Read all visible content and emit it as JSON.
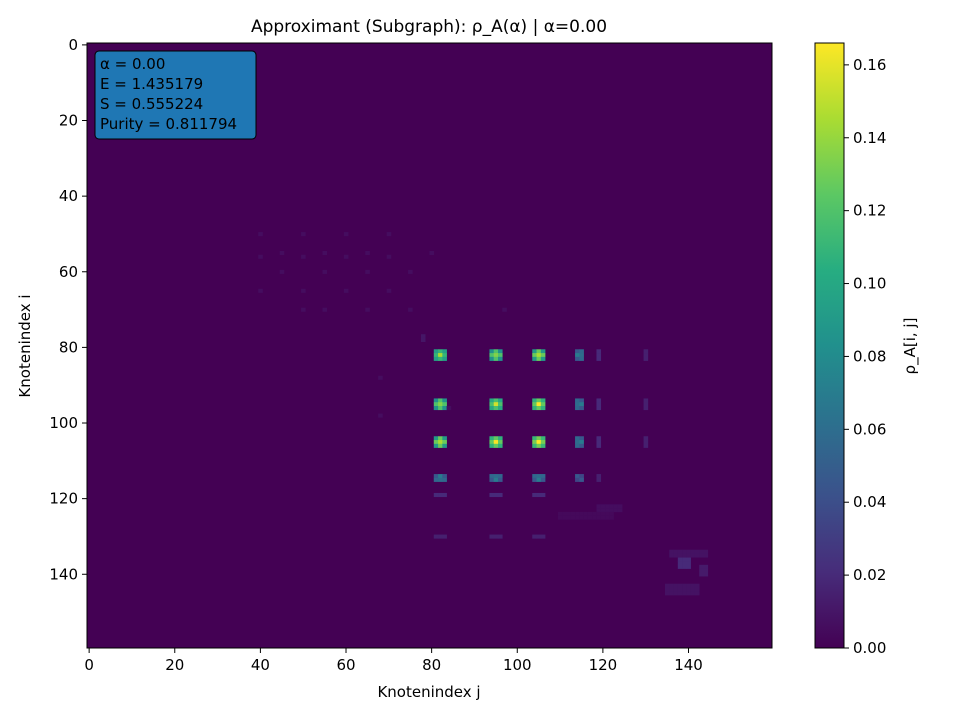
{
  "chart_data": {
    "type": "heatmap",
    "title": "Approximant (Subgraph): ρ_A(α)  |  α=0.00",
    "xlabel": "Knotenindex j",
    "ylabel": "Knotenindex i",
    "colorbar_label": "ρ_A[i, j]",
    "colormap": "viridis",
    "x_range": [
      0,
      159
    ],
    "y_range": [
      0,
      159
    ],
    "y_inverted": true,
    "x_ticks": [
      0,
      20,
      40,
      60,
      80,
      100,
      120,
      140
    ],
    "y_ticks": [
      0,
      20,
      40,
      60,
      80,
      100,
      120,
      140
    ],
    "color_range": [
      0,
      0.166
    ],
    "colorbar_ticks": [
      0.0,
      0.02,
      0.04,
      0.06,
      0.08,
      0.1,
      0.12,
      0.14,
      0.16
    ],
    "colorbar_tick_labels": [
      "0.00",
      "0.02",
      "0.04",
      "0.06",
      "0.08",
      "0.10",
      "0.12",
      "0.14",
      "0.16"
    ],
    "background_value": 0.0,
    "info_box": {
      "lines": [
        "α = 0.00",
        "E = 1.435179",
        "S = 0.555224",
        "Purity = 0.811794"
      ],
      "background_color": "#1f77b4"
    },
    "hotspot_indices": [
      81,
      82,
      83,
      94,
      95,
      96,
      104,
      105,
      106
    ],
    "hotspot_blocks": [
      {
        "i": [
          81,
          83
        ],
        "j": [
          81,
          83
        ],
        "value": 0.14
      },
      {
        "i": [
          81,
          83
        ],
        "j": [
          94,
          96
        ],
        "value": 0.14
      },
      {
        "i": [
          81,
          83
        ],
        "j": [
          104,
          106
        ],
        "value": 0.15
      },
      {
        "i": [
          94,
          96
        ],
        "j": [
          81,
          83
        ],
        "value": 0.14
      },
      {
        "i": [
          94,
          96
        ],
        "j": [
          94,
          96
        ],
        "value": 0.15
      },
      {
        "i": [
          94,
          96
        ],
        "j": [
          104,
          106
        ],
        "value": 0.16
      },
      {
        "i": [
          104,
          106
        ],
        "j": [
          81,
          83
        ],
        "value": 0.15
      },
      {
        "i": [
          104,
          106
        ],
        "j": [
          94,
          96
        ],
        "value": 0.16
      },
      {
        "i": [
          104,
          106
        ],
        "j": [
          104,
          106
        ],
        "value": 0.166
      }
    ],
    "medium_blocks": [
      {
        "i": [
          81,
          83
        ],
        "j": [
          114,
          115
        ],
        "value": 0.07
      },
      {
        "i": [
          94,
          96
        ],
        "j": [
          114,
          115
        ],
        "value": 0.07
      },
      {
        "i": [
          104,
          106
        ],
        "j": [
          114,
          115
        ],
        "value": 0.07
      },
      {
        "i": [
          114,
          115
        ],
        "j": [
          81,
          83
        ],
        "value": 0.07
      },
      {
        "i": [
          114,
          115
        ],
        "j": [
          94,
          96
        ],
        "value": 0.07
      },
      {
        "i": [
          114,
          115
        ],
        "j": [
          104,
          106
        ],
        "value": 0.07
      },
      {
        "i": [
          114,
          115
        ],
        "j": [
          114,
          115
        ],
        "value": 0.05
      }
    ],
    "faint_blocks": [
      {
        "i": [
          81,
          83
        ],
        "j": [
          119,
          119
        ],
        "value": 0.02
      },
      {
        "i": [
          94,
          96
        ],
        "j": [
          119,
          119
        ],
        "value": 0.02
      },
      {
        "i": [
          104,
          106
        ],
        "j": [
          119,
          119
        ],
        "value": 0.02
      },
      {
        "i": [
          81,
          83
        ],
        "j": [
          130,
          130
        ],
        "value": 0.015
      },
      {
        "i": [
          94,
          96
        ],
        "j": [
          130,
          130
        ],
        "value": 0.015
      },
      {
        "i": [
          104,
          106
        ],
        "j": [
          130,
          130
        ],
        "value": 0.015
      },
      {
        "i": [
          114,
          115
        ],
        "j": [
          119,
          119
        ],
        "value": 0.015
      },
      {
        "i": [
          119,
          119
        ],
        "j": [
          81,
          83
        ],
        "value": 0.02
      },
      {
        "i": [
          119,
          119
        ],
        "j": [
          94,
          96
        ],
        "value": 0.02
      },
      {
        "i": [
          119,
          119
        ],
        "j": [
          104,
          106
        ],
        "value": 0.02
      },
      {
        "i": [
          130,
          130
        ],
        "j": [
          81,
          83
        ],
        "value": 0.015
      },
      {
        "i": [
          130,
          130
        ],
        "j": [
          94,
          96
        ],
        "value": 0.015
      },
      {
        "i": [
          130,
          130
        ],
        "j": [
          104,
          106
        ],
        "value": 0.015
      },
      {
        "i": [
          77,
          78
        ],
        "j": [
          78,
          78
        ],
        "value": 0.01
      },
      {
        "i": [
          136,
          138
        ],
        "j": [
          138,
          140
        ],
        "value": 0.02
      },
      {
        "i": [
          138,
          140
        ],
        "j": [
          143,
          144
        ],
        "value": 0.012
      },
      {
        "i": [
          134,
          135
        ],
        "j": [
          136,
          144
        ],
        "value": 0.008
      },
      {
        "i": [
          122,
          123
        ],
        "j": [
          119,
          124
        ],
        "value": 0.006
      },
      {
        "i": [
          124,
          125
        ],
        "j": [
          110,
          122
        ],
        "value": 0.004
      },
      {
        "i": [
          143,
          145
        ],
        "j": [
          135,
          142
        ],
        "value": 0.008
      }
    ],
    "upper_faint_dots": [
      {
        "i": 50,
        "j": 40
      },
      {
        "i": 50,
        "j": 50
      },
      {
        "i": 50,
        "j": 60
      },
      {
        "i": 50,
        "j": 70
      },
      {
        "i": 55,
        "j": 45
      },
      {
        "i": 55,
        "j": 55
      },
      {
        "i": 55,
        "j": 65
      },
      {
        "i": 56,
        "j": 40
      },
      {
        "i": 56,
        "j": 50
      },
      {
        "i": 56,
        "j": 60
      },
      {
        "i": 56,
        "j": 70
      },
      {
        "i": 60,
        "j": 45
      },
      {
        "i": 60,
        "j": 55
      },
      {
        "i": 60,
        "j": 65
      },
      {
        "i": 65,
        "j": 40
      },
      {
        "i": 65,
        "j": 50
      },
      {
        "i": 65,
        "j": 60
      },
      {
        "i": 65,
        "j": 70
      },
      {
        "i": 70,
        "j": 50
      },
      {
        "i": 70,
        "j": 55
      },
      {
        "i": 70,
        "j": 65
      },
      {
        "i": 70,
        "j": 75
      },
      {
        "i": 60,
        "j": 75
      },
      {
        "i": 88,
        "j": 68
      },
      {
        "i": 98,
        "j": 68
      },
      {
        "i": 96,
        "j": 84
      },
      {
        "i": 70,
        "j": 97
      },
      {
        "i": 55,
        "j": 80
      }
    ]
  }
}
